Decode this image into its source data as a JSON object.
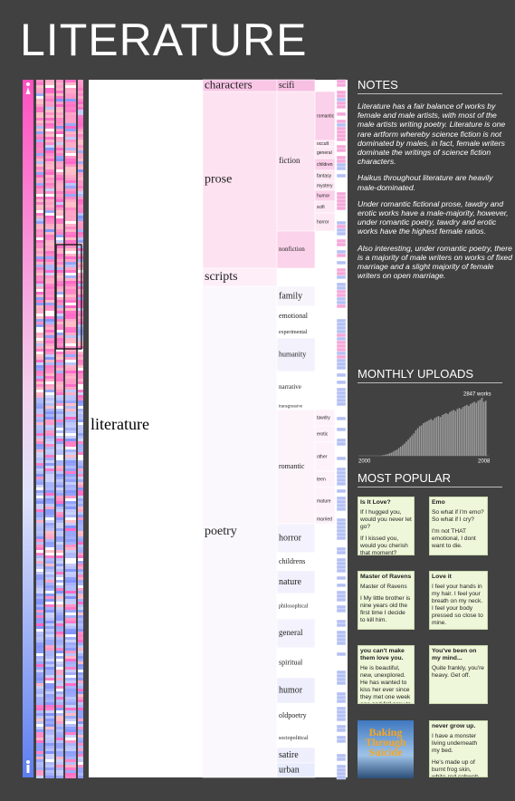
{
  "title": "LITERATURE",
  "tree": {
    "root": "literature",
    "categories": [
      "characters",
      "prose",
      "scripts",
      "poetry"
    ],
    "subcategories": [
      "scifi",
      "fiction",
      "nonfiction",
      "family",
      "emotional",
      "experimental",
      "humanity",
      "narrative",
      "transgressive",
      "romantic",
      "horror",
      "childrens",
      "nature",
      "philosophical",
      "general",
      "spiritual",
      "humor",
      "oldpoetry",
      "sociopolitical",
      "satire",
      "urban"
    ],
    "fiction_genres": [
      "romantic",
      "occult",
      "general",
      "children",
      "fantasy",
      "mystery",
      "humor",
      "scifi",
      "horror"
    ],
    "romantic_types": [
      "tawdry",
      "erotic",
      "other",
      "teen",
      "mature",
      "married"
    ]
  },
  "notes": {
    "heading": "NOTES",
    "paragraphs": [
      "Literature has a fair balance of works by female and male artists, with most of the male artists writing poetry. Literature is one rare artform whereby science fiction is not dominated by males, in fact, female writers dominate the writings of science fiction characters.",
      "Haikus throughout literature are heavily male-dominated.",
      "Under romantic fictional prose, tawdry and erotic works have a male-majority, however, under romantic poetry, tawdry and erotic works have the highest female ratios.",
      "Also interesting, under romantic poetry, there is a majority of male writers on works of fixed marriage and a slight majority of female writers on open marriage."
    ]
  },
  "monthly_uploads": {
    "heading": "MONTHLY UPLOADS",
    "peak_label": "2847 works",
    "start_label": "2000",
    "end_label": "2008",
    "values": [
      0,
      0,
      0,
      0,
      0,
      0,
      0,
      0,
      0,
      0,
      0,
      0,
      20,
      40,
      60,
      80,
      120,
      150,
      200,
      260,
      300,
      380,
      450,
      520,
      600,
      700,
      800,
      900,
      1000,
      1100,
      1250,
      1350,
      1450,
      1500,
      1600,
      1650,
      1700,
      1750,
      1800,
      1750,
      1850,
      1900,
      1950,
      1900,
      2000,
      2050,
      2100,
      2050,
      2150,
      2200,
      2250,
      2200,
      2300,
      2350,
      2300,
      2400,
      2450,
      2500,
      2450,
      2550,
      2600,
      2650,
      2600,
      2700,
      2750,
      2847,
      2650,
      2700
    ]
  },
  "most_popular": {
    "heading": "MOST POPULAR",
    "works": [
      {
        "title": "Is It Love?",
        "lines": [
          "If I hugged you, would you never let go?",
          "If I kissed you, would you cherish that moment?"
        ]
      },
      {
        "title": "Emo",
        "lines": [
          "So what if I'm emo? So what if I cry?",
          "I'm not THAT emotional, I dont want to die."
        ]
      },
      {
        "title": "Master of Ravens",
        "lines": [
          "Master of Ravens",
          "I My little brother is nine years old the first time I decide to kill him."
        ]
      },
      {
        "title": "Love it",
        "lines": [
          "I feel your hands in my hair. I feel your breath on my neck. I feel your body pressed so close to mine."
        ]
      },
      {
        "title": "you can't make them love you.",
        "lines": [
          "He is beautiful, new, unexplored.  He has wanted to kiss her ever since they met one week ago and fell prey to helpless"
        ]
      },
      {
        "title": "You've been on my mind...",
        "lines": [
          "Quite frankly, you're heavy. Get off."
        ]
      },
      {
        "title": "Baking Through Suicide",
        "lines": []
      },
      {
        "title": "never grow up.",
        "lines": [
          "I have a monster living underneath my bed.",
          "He's made up of burnt frog skin, white-red cobweb"
        ]
      }
    ]
  }
}
